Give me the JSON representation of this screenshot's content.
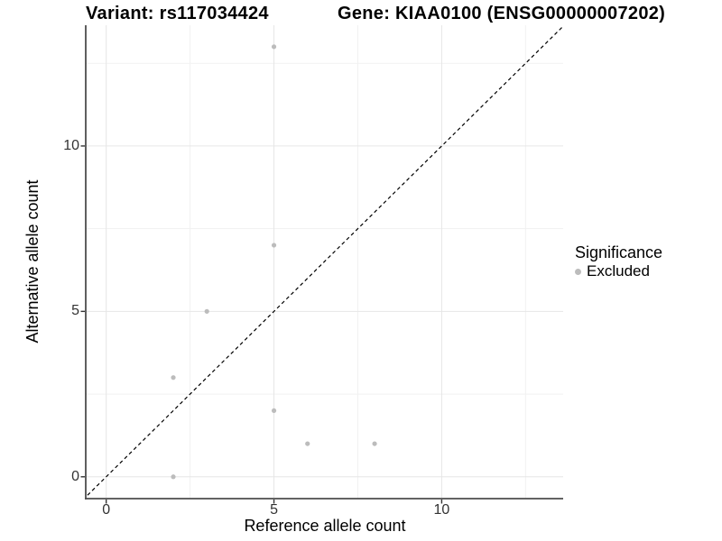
{
  "title": {
    "variant_label": "Variant: rs117034424",
    "gene_label": "Gene: KIAA0100 (ENSG00000007202)"
  },
  "legend": {
    "title": "Significance",
    "items": [
      {
        "label": "Excluded",
        "color": "#bcbcbc"
      }
    ]
  },
  "colors": {
    "background": "#ffffff",
    "grid_major": "#e6e6e6",
    "grid_minor": "#f1f1f1",
    "axis_line": "#4d4d4d",
    "tick_mark": "#333333",
    "tick_label": "#333333",
    "point_excluded": "#bcbcbc",
    "reference_line": "#000000"
  },
  "chart_data": {
    "type": "scatter",
    "title": "Variant: rs117034424 — Gene: KIAA0100 (ENSG00000007202)",
    "xlabel": "Reference allele count",
    "ylabel": "Alternative allele count",
    "xlim": [
      -0.61,
      13.62
    ],
    "ylim": [
      -0.66,
      13.65
    ],
    "x_ticks": [
      0,
      5,
      10
    ],
    "y_ticks": [
      0,
      5,
      10
    ],
    "minor_gridlines_x": [
      2.5,
      7.5,
      12.5
    ],
    "minor_gridlines_y": [
      2.5,
      7.5,
      12.5
    ],
    "grid": true,
    "legend_position": "right",
    "series": [
      {
        "name": "Excluded",
        "color": "#bcbcbc",
        "points": [
          [
            2,
            0
          ],
          [
            2,
            3
          ],
          [
            3,
            5
          ],
          [
            5,
            2
          ],
          [
            5,
            7
          ],
          [
            5,
            13
          ],
          [
            6,
            1
          ],
          [
            8,
            1
          ]
        ]
      }
    ],
    "reference_line": {
      "type": "identity",
      "style": "dashed",
      "color": "#000000"
    }
  }
}
